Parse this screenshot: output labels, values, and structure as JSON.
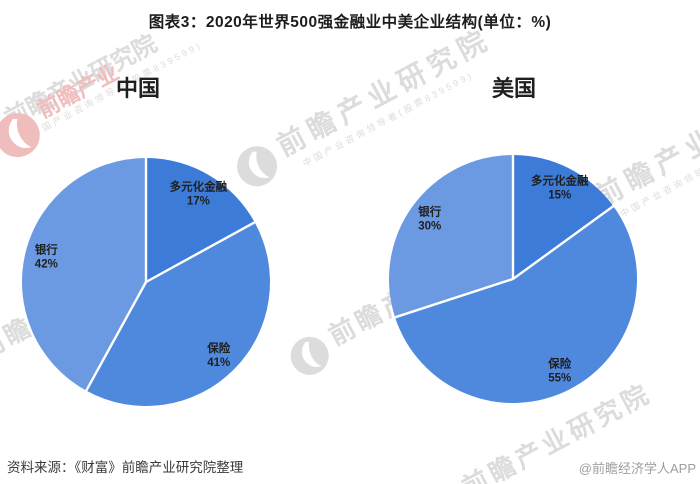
{
  "title": "图表3：2020年世界500强金融业中美企业结构(单位：%)",
  "chart_data": [
    {
      "type": "pie",
      "title": "中国",
      "unit": "%",
      "start_angle": 0,
      "direction": "clockwise",
      "slices": [
        {
          "label": "多元化金融",
          "value": 17
        },
        {
          "label": "保险",
          "value": 41
        },
        {
          "label": "银行",
          "value": 42
        }
      ]
    },
    {
      "type": "pie",
      "title": "美国",
      "unit": "%",
      "start_angle": 0,
      "direction": "clockwise",
      "slices": [
        {
          "label": "多元化金融",
          "value": 15
        },
        {
          "label": "保险",
          "value": 55
        },
        {
          "label": "银行",
          "value": 30
        }
      ]
    }
  ],
  "colors": {
    "多元化金融": "#3C7CD8",
    "保险": "#4E89DE",
    "银行": "#6B9AE2",
    "slice_border": "#FFFFFF",
    "slice_label": "#1f1f1f",
    "watermark_gray": "#dcdcdc",
    "watermark_pink": "#f0bdbd"
  },
  "footer": {
    "source": "资料来源：《财富》前瞻产业研究院整理",
    "credit": "@前瞻经济学人APP"
  },
  "watermark": {
    "brand": "前瞻产业研究院",
    "brand_short": "前瞻产业",
    "tagline": "中国产业咨询领导者(股票839599)"
  }
}
